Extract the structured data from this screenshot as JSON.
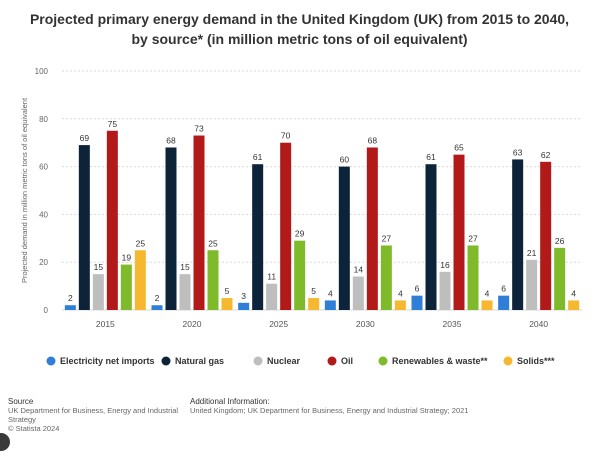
{
  "chart_data": {
    "type": "bar",
    "title": "Projected primary energy demand in the United Kingdom (UK) from 2015 to 2040, by source* (in million metric tons of oil equivalent)",
    "ylabel": "Projected demand in million metric tons of oil equivalent",
    "xlabel": "",
    "ylim": [
      0,
      100
    ],
    "yticks": [
      0,
      20,
      40,
      60,
      80,
      100
    ],
    "grid": true,
    "legend_position": "bottom",
    "categories": [
      "2015",
      "2020",
      "2025",
      "2030",
      "2035",
      "2040"
    ],
    "series": [
      {
        "name": "Electricity net imports",
        "color": "#2f7ed8",
        "values": [
          2,
          2,
          3,
          4,
          6,
          6
        ]
      },
      {
        "name": "Natural gas",
        "color": "#0d233a",
        "values": [
          69,
          68,
          61,
          60,
          61,
          63
        ]
      },
      {
        "name": "Nuclear",
        "color": "#bebebe",
        "values": [
          15,
          15,
          11,
          14,
          16,
          21
        ]
      },
      {
        "name": "Oil",
        "color": "#b21a1a",
        "values": [
          75,
          73,
          70,
          68,
          65,
          62
        ]
      },
      {
        "name": "Renewables & waste**",
        "color": "#7fba2a",
        "values": [
          19,
          25,
          29,
          27,
          27,
          26
        ]
      },
      {
        "name": "Solids***",
        "color": "#f5b82e",
        "values": [
          25,
          5,
          5,
          4,
          4,
          4
        ]
      }
    ]
  },
  "footer": {
    "source_heading": "Source",
    "source_lines": [
      "UK Department for Business, Energy and Industrial",
      "Strategy",
      "© Statista 2024"
    ],
    "info_heading": "Additional Information:",
    "info_lines": [
      "United Kingdom; UK Department for Business, Energy and Industrial Strategy; 2021"
    ]
  }
}
